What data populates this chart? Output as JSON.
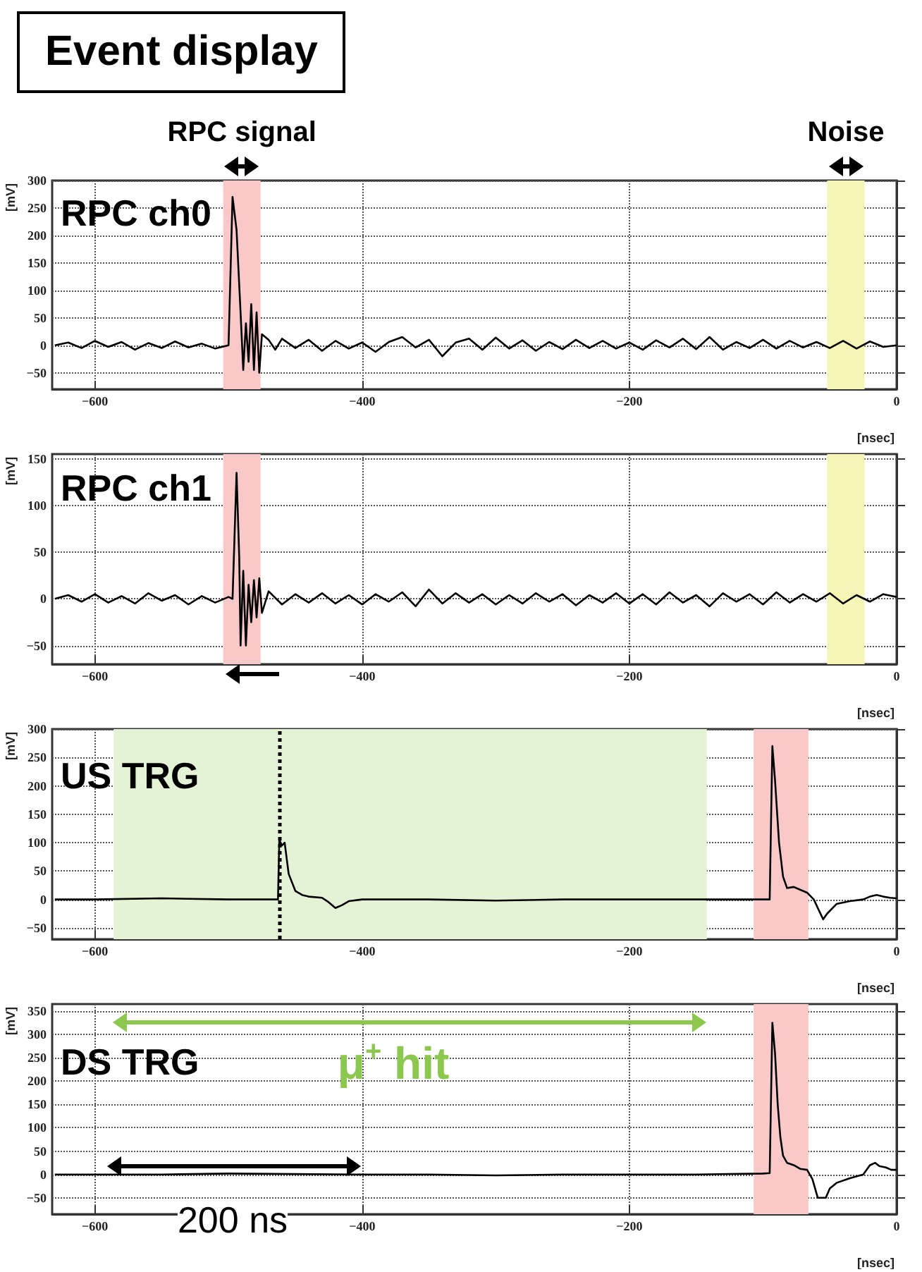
{
  "chart_data": [
    {
      "type": "line",
      "title": "Event display",
      "xlabel": "[nsec]",
      "ylabel": "[mV]",
      "xlim": [
        -632,
        0
      ],
      "xticks": [
        -600,
        -400,
        -200,
        0
      ],
      "ylim": [
        -80,
        300
      ],
      "yticks": [
        -50,
        0,
        50,
        100,
        150,
        200,
        250,
        300
      ],
      "grid": true,
      "marker": "none",
      "line_style": "solid",
      "annotations": [
        "RPC ch0"
      ],
      "bands": [
        {
          "axis": "x",
          "from": -504,
          "to": -476,
          "label": "RPC signal",
          "color": "#f9c9c9"
        },
        {
          "axis": "x",
          "from": -52,
          "to": -24,
          "label": "Noise",
          "color": "#f7f5b5"
        }
      ],
      "series": [
        {
          "color": "#000000",
          "x": [
            -630,
            -620,
            -610,
            -600,
            -590,
            -580,
            -570,
            -560,
            -550,
            -540,
            -530,
            -520,
            -510,
            -500,
            -497,
            -494,
            -491,
            -489,
            -487,
            -485,
            -483,
            -481,
            -479,
            -477,
            -475,
            -470,
            -465,
            -460,
            -450,
            -440,
            -430,
            -420,
            -410,
            -400,
            -390,
            -380,
            -370,
            -360,
            -350,
            -340,
            -330,
            -320,
            -310,
            -300,
            -290,
            -280,
            -270,
            -260,
            -250,
            -240,
            -230,
            -220,
            -210,
            -200,
            -190,
            -180,
            -170,
            -160,
            -150,
            -140,
            -130,
            -120,
            -110,
            -100,
            -90,
            -80,
            -70,
            -60,
            -50,
            -40,
            -30,
            -20,
            -10,
            0
          ],
          "values": [
            0,
            5,
            -5,
            8,
            -3,
            6,
            -8,
            4,
            -5,
            7,
            -4,
            3,
            -6,
            0,
            270,
            210,
            60,
            -45,
            40,
            -30,
            75,
            -45,
            60,
            -50,
            20,
            10,
            -8,
            12,
            -5,
            10,
            -10,
            8,
            -6,
            5,
            -12,
            6,
            15,
            -4,
            10,
            -20,
            5,
            12,
            -8,
            14,
            -6,
            9,
            -10,
            6,
            -7,
            10,
            -5,
            8,
            -6,
            5,
            -8,
            9,
            -4,
            12,
            -7,
            15,
            -8,
            6,
            -5,
            10,
            -6,
            8,
            -4,
            6,
            -5,
            8,
            -6,
            7,
            -3,
            0
          ]
        }
      ]
    },
    {
      "type": "line",
      "xlabel": "[nsec]",
      "ylabel": "[mV]",
      "xlim": [
        -632,
        0
      ],
      "xticks": [
        -600,
        -400,
        -200,
        0
      ],
      "ylim": [
        -70,
        155
      ],
      "yticks": [
        -50,
        0,
        50,
        100,
        150
      ],
      "grid": true,
      "marker": "none",
      "line_style": "solid",
      "annotations": [
        "RPC ch1"
      ],
      "bands": [
        {
          "axis": "x",
          "from": -504,
          "to": -476,
          "color": "#f9c9c9"
        },
        {
          "axis": "x",
          "from": -52,
          "to": -24,
          "color": "#f7f5b5"
        }
      ],
      "series": [
        {
          "color": "#000000",
          "x": [
            -630,
            -620,
            -610,
            -600,
            -590,
            -580,
            -570,
            -560,
            -550,
            -540,
            -530,
            -520,
            -510,
            -500,
            -497,
            -494,
            -492,
            -491,
            -489,
            -487,
            -485,
            -483,
            -481,
            -479,
            -477,
            -475,
            -470,
            -460,
            -450,
            -440,
            -430,
            -420,
            -410,
            -400,
            -390,
            -380,
            -370,
            -360,
            -350,
            -340,
            -330,
            -320,
            -310,
            -300,
            -290,
            -280,
            -270,
            -260,
            -250,
            -240,
            -230,
            -220,
            -210,
            -200,
            -190,
            -180,
            -170,
            -160,
            -150,
            -140,
            -130,
            -120,
            -110,
            -100,
            -90,
            -80,
            -70,
            -60,
            -50,
            -40,
            -30,
            -20,
            -10,
            0
          ],
          "values": [
            0,
            4,
            -3,
            5,
            -4,
            3,
            -5,
            6,
            -2,
            4,
            -6,
            3,
            -4,
            2,
            0,
            135,
            45,
            -50,
            30,
            -50,
            15,
            -25,
            20,
            -20,
            22,
            -15,
            8,
            -6,
            5,
            -4,
            6,
            -5,
            4,
            -6,
            5,
            -3,
            7,
            -8,
            10,
            -5,
            6,
            -4,
            5,
            -6,
            4,
            -5,
            6,
            -3,
            5,
            -7,
            4,
            -4,
            6,
            -5,
            5,
            -6,
            7,
            -4,
            4,
            -8,
            6,
            -3,
            5,
            -6,
            7,
            -4,
            5,
            -3,
            6,
            -5,
            4,
            -3,
            5,
            2
          ]
        }
      ]
    },
    {
      "type": "line",
      "xlabel": "[nsec]",
      "ylabel": "[mV]",
      "xlim": [
        -632,
        0
      ],
      "xticks": [
        -600,
        -400,
        -200,
        0
      ],
      "ylim": [
        -70,
        300
      ],
      "yticks": [
        -50,
        0,
        50,
        100,
        150,
        200,
        250,
        300
      ],
      "grid": true,
      "marker": "none",
      "line_style": "solid",
      "annotations": [
        "US TRG"
      ],
      "bands": [
        {
          "axis": "x",
          "from": -586,
          "to": -142,
          "color": "#e4f2d6"
        },
        {
          "axis": "x",
          "from": -107,
          "to": -66,
          "color": "#f9c9c9"
        }
      ],
      "ref_lines": [
        {
          "axis": "x",
          "value": -462,
          "color": "#000000",
          "line_style": "dotted"
        }
      ],
      "series": [
        {
          "color": "#000000",
          "x": [
            -630,
            -600,
            -550,
            -500,
            -470,
            -463,
            -462,
            -460,
            -458,
            -455,
            -450,
            -445,
            -440,
            -430,
            -425,
            -420,
            -415,
            -410,
            -400,
            -350,
            -300,
            -250,
            -200,
            -150,
            -100,
            -95,
            -93,
            -91,
            -88,
            -85,
            -82,
            -77,
            -72,
            -67,
            -62,
            -58,
            -55,
            -52,
            -45,
            -35,
            -25,
            -20,
            -15,
            -10,
            -5,
            0
          ],
          "values": [
            0,
            0,
            2,
            0,
            0,
            0,
            105,
            95,
            100,
            45,
            15,
            8,
            5,
            3,
            -5,
            -15,
            -10,
            -3,
            0,
            0,
            -2,
            0,
            0,
            0,
            0,
            0,
            270,
            210,
            100,
            40,
            20,
            22,
            17,
            12,
            0,
            -20,
            -35,
            -25,
            -8,
            -3,
            0,
            5,
            8,
            5,
            3,
            2
          ]
        }
      ]
    },
    {
      "type": "line",
      "xlabel": "[nsec]",
      "ylabel": "[mV]",
      "xlim": [
        -632,
        0
      ],
      "xticks": [
        -600,
        -400,
        -200,
        0
      ],
      "ylim": [
        -85,
        365
      ],
      "yticks": [
        -50,
        0,
        50,
        100,
        150,
        200,
        250,
        300,
        350
      ],
      "grid": true,
      "marker": "none",
      "line_style": "solid",
      "annotations": [
        "DS TRG",
        "μ$^{+}$ hit",
        "200 ns"
      ],
      "bands": [
        {
          "axis": "x",
          "from": -107,
          "to": -66,
          "color": "#f9c9c9"
        }
      ],
      "series": [
        {
          "color": "#000000",
          "x": [
            -630,
            -600,
            -550,
            -500,
            -400,
            -350,
            -300,
            -250,
            -200,
            -150,
            -100,
            -95,
            -93,
            -91,
            -89,
            -87,
            -85,
            -82,
            -77,
            -72,
            -67,
            -63,
            -59,
            -53,
            -50,
            -45,
            -35,
            -25,
            -20,
            -16,
            -13,
            -8,
            -4,
            0
          ],
          "values": [
            0,
            0,
            0,
            2,
            0,
            0,
            -2,
            0,
            0,
            0,
            2,
            3,
            325,
            260,
            150,
            80,
            40,
            25,
            20,
            12,
            10,
            -10,
            -50,
            -50,
            -30,
            -18,
            -8,
            0,
            20,
            25,
            18,
            15,
            10,
            10
          ]
        }
      ]
    }
  ]
}
